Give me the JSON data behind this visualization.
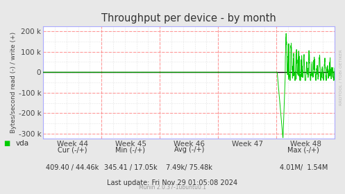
{
  "title": "Throughput per device - by month",
  "ylabel": "Bytes/second read (-) / write (+)",
  "bg_color": "#e8e8e8",
  "plot_bg_color": "#ffffff",
  "grid_h_color": "#ff9999",
  "grid_v_color": "#ff9999",
  "minor_grid_color": "#d0d0d0",
  "line_color": "#00cc00",
  "zero_line_color": "#000000",
  "axis_border_color": "#aaaaff",
  "week_labels": [
    "Week 44",
    "Week 45",
    "Week 46",
    "Week 47",
    "Week 48"
  ],
  "ylim": [
    -325000,
    225000
  ],
  "yticks": [
    -300000,
    -200000,
    -100000,
    0,
    100000,
    200000
  ],
  "ytick_labels": [
    "-300 k",
    "-200 k",
    "-100 k",
    "0",
    "100 k",
    "200 k"
  ],
  "footer_munin": "Munin 2.0.37-1ubuntu0.1",
  "rrdtool_label": "RRDTOOL / TOBI OETIKER",
  "legend_color": "#00cc00",
  "legend_label": "vda",
  "cur_label": "Cur (-/+)",
  "min_label": "Min (-/+)",
  "avg_label": "Avg (-/+)",
  "max_label": "Max (-/+)",
  "cur_val": "409.40 / 44.46k",
  "min_val": "345.41 / 17.05k",
  "avg_val": "7.49k/ 75.48k",
  "max_val": "4.01M/  1.54M",
  "last_update": "Last update: Fri Nov 29 01:05:08 2024"
}
